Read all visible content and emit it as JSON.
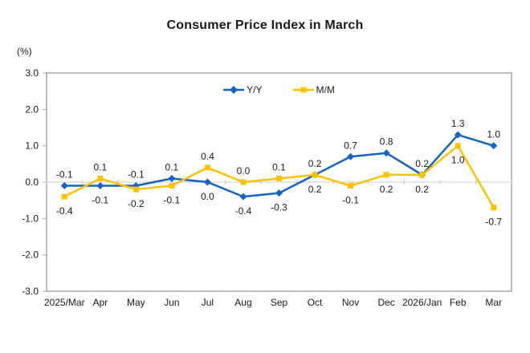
{
  "chart_data": {
    "type": "line",
    "title": "Consumer Price Index in March",
    "ylabel": "(%)",
    "xlabel": "",
    "categories": [
      "2025/Mar",
      "Apr",
      "May",
      "Jun",
      "Jul",
      "Aug",
      "Sep",
      "Oct",
      "Nov",
      "Dec",
      "2026/Jan",
      "Feb",
      "Mar"
    ],
    "series": [
      {
        "name": "Y/Y",
        "color": "#1565C0",
        "marker": "diamond",
        "values": [
          -0.1,
          -0.1,
          -0.1,
          0.1,
          0.0,
          -0.4,
          -0.3,
          0.2,
          0.7,
          0.8,
          0.2,
          1.3,
          1.0
        ]
      },
      {
        "name": "M/M",
        "color": "#FFC000",
        "marker": "square",
        "values": [
          -0.4,
          0.1,
          -0.2,
          -0.1,
          0.4,
          0.0,
          0.1,
          0.2,
          -0.1,
          0.2,
          0.2,
          1.0,
          -0.7
        ]
      }
    ],
    "ylim": [
      -3.0,
      3.0
    ],
    "yticks": [
      "3.0",
      "2.0",
      "1.0",
      "0.0",
      "-1.0",
      "-2.0",
      "-3.0"
    ],
    "grid": "zero-line-only",
    "legend_position": "top-center",
    "data_labels": true
  },
  "colors": {
    "yy_series": "#1565C0",
    "mm_series": "#FFC000",
    "plot_border": "#A6A6A6",
    "zero_line": "#C9C9C9",
    "text": "#1A1A1A"
  }
}
